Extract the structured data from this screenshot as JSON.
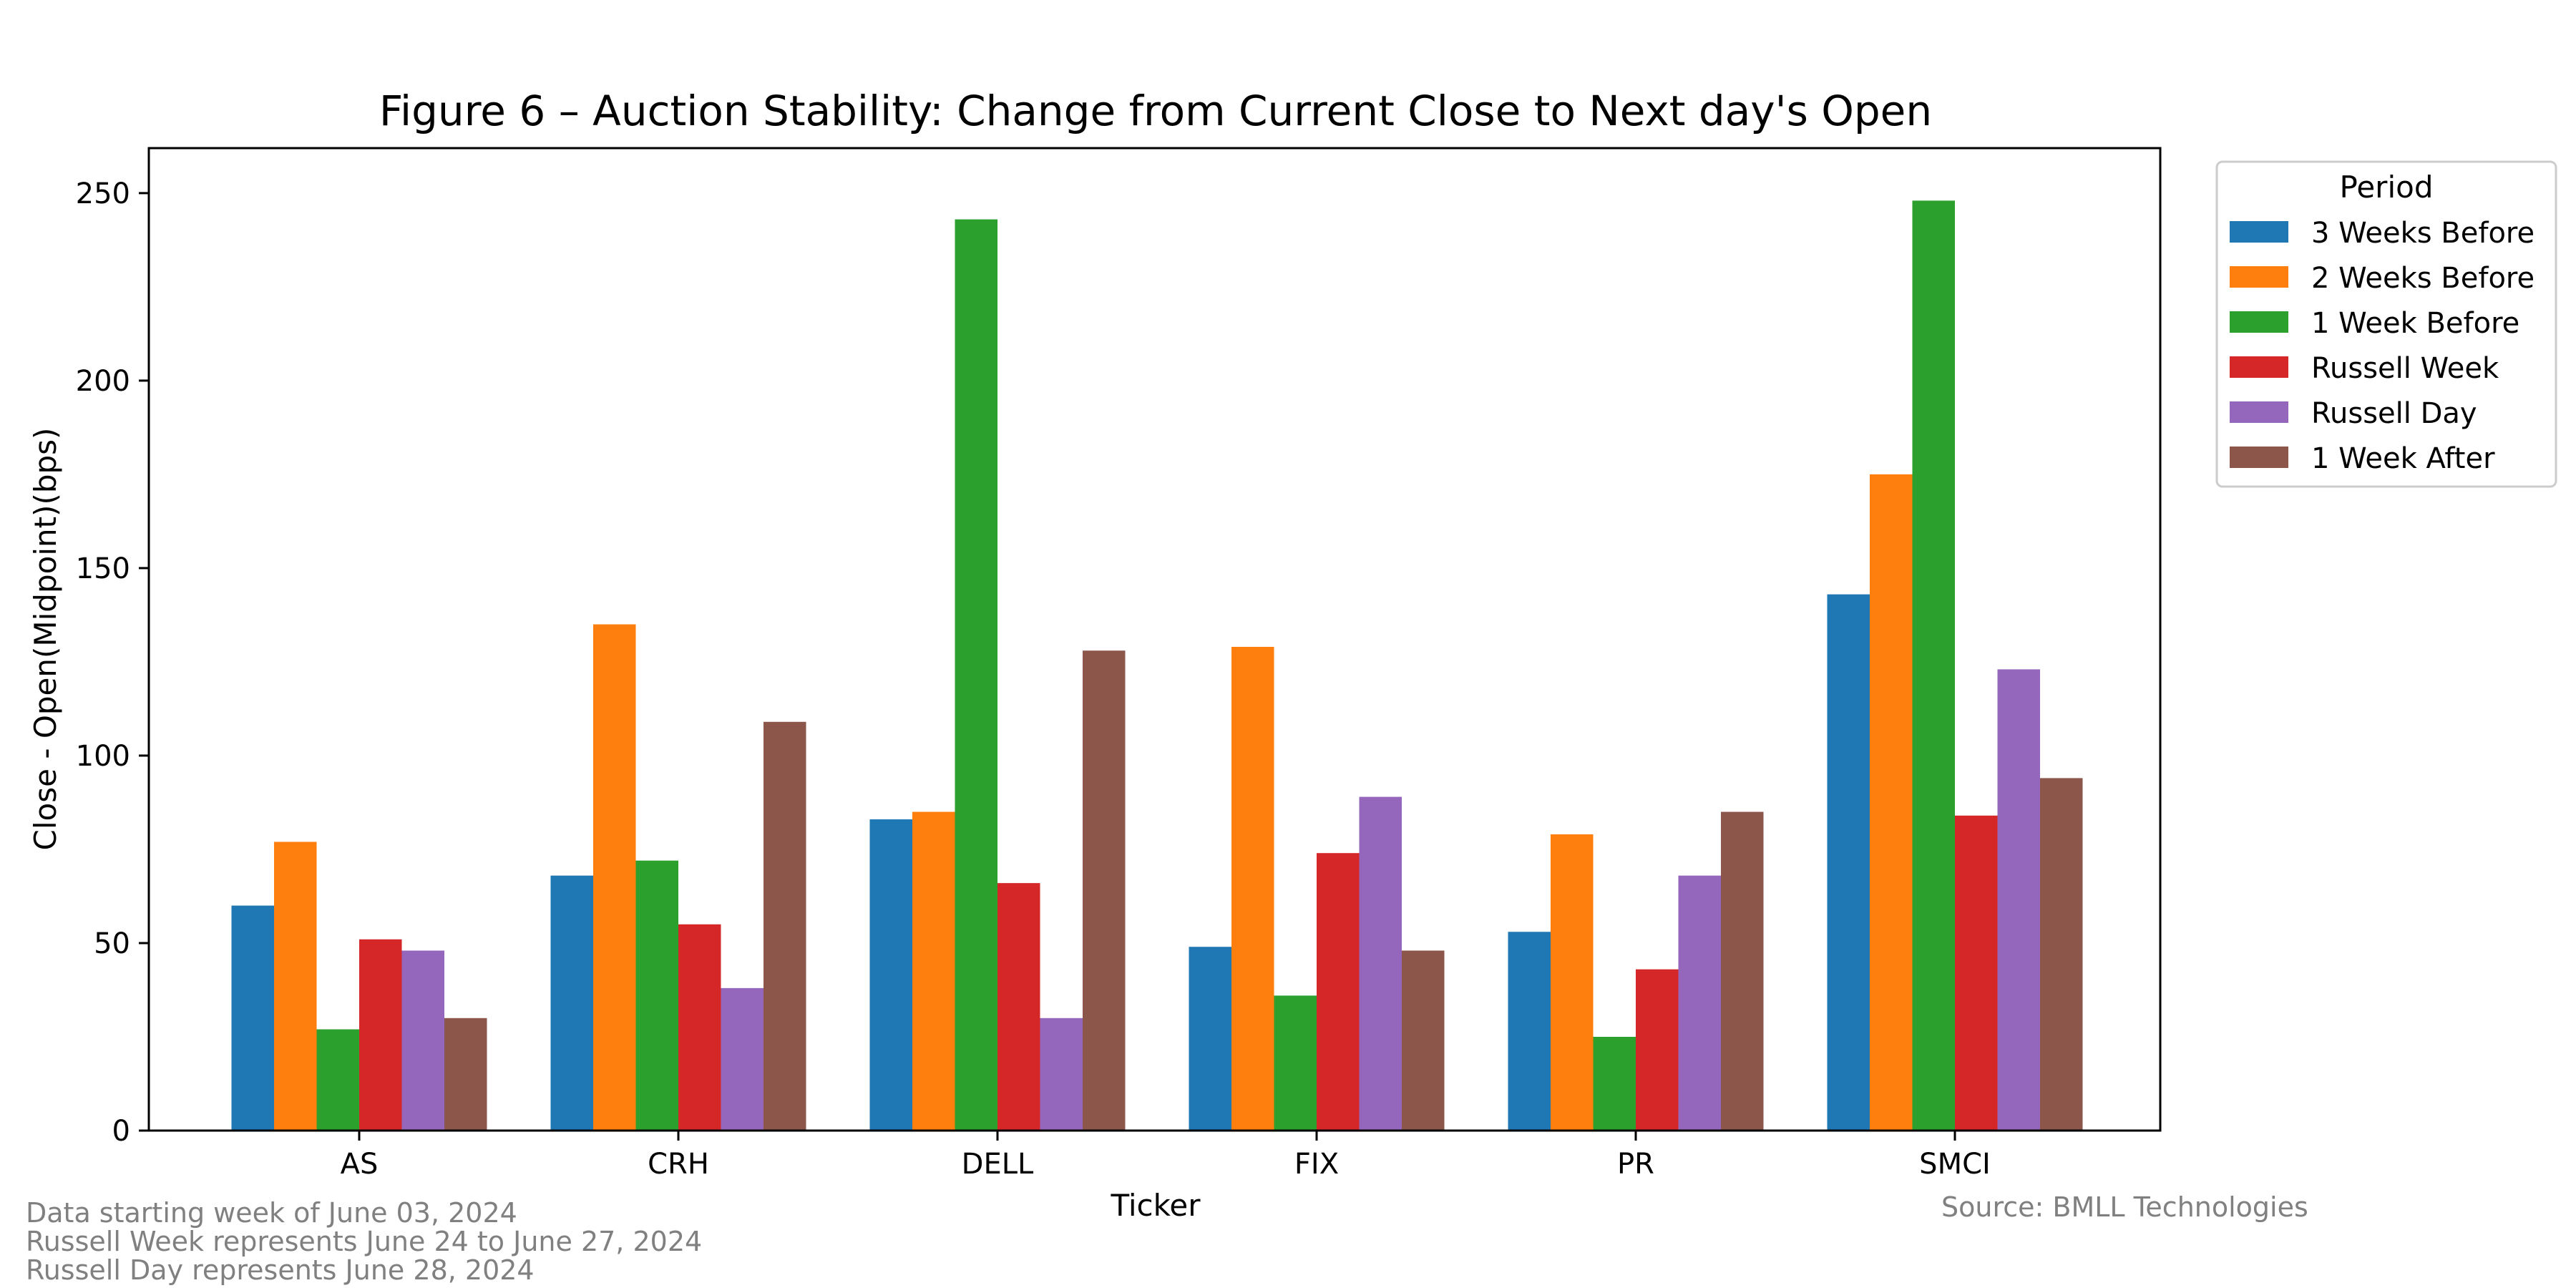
{
  "chart_data": {
    "type": "bar",
    "title": "Figure 6 – Auction Stability: Change from Current Close to Next day's Open",
    "xlabel": "Ticker",
    "ylabel": "Close - Open(Midpoint)(bps)",
    "categories": [
      "AS",
      "CRH",
      "DELL",
      "FIX",
      "PR",
      "SMCI"
    ],
    "ylim": [
      0,
      262
    ],
    "yticks": [
      0,
      50,
      100,
      150,
      200,
      250
    ],
    "grid": false,
    "legend": {
      "title": "Period",
      "position": "outside-top-right"
    },
    "series": [
      {
        "name": "3 Weeks Before",
        "color": "#1f77b4",
        "values": [
          60,
          68,
          83,
          49,
          53,
          143
        ]
      },
      {
        "name": "2 Weeks Before",
        "color": "#ff7f0e",
        "values": [
          77,
          135,
          85,
          129,
          79,
          175
        ]
      },
      {
        "name": "1 Week Before",
        "color": "#2ca02c",
        "values": [
          27,
          72,
          243,
          36,
          25,
          248
        ]
      },
      {
        "name": "Russell Week",
        "color": "#d62728",
        "values": [
          51,
          55,
          66,
          74,
          43,
          84
        ]
      },
      {
        "name": "Russell Day",
        "color": "#9467bd",
        "values": [
          48,
          38,
          30,
          89,
          68,
          123
        ]
      },
      {
        "name": "1 Week After",
        "color": "#8c564b",
        "values": [
          30,
          109,
          128,
          48,
          85,
          94
        ]
      }
    ]
  },
  "footnotes": [
    "Data starting week of June 03, 2024",
    "Russell Week represents June 24 to June 27, 2024",
    "Russell Day represents June 28, 2024"
  ],
  "source": "Source: BMLL Technologies"
}
